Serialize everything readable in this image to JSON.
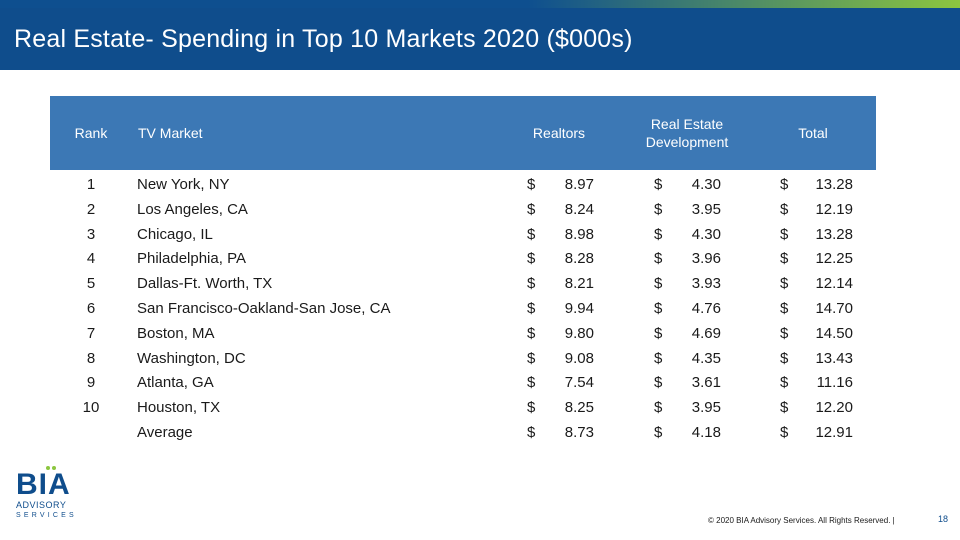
{
  "title": "Real Estate- Spending in Top 10 Markets 2020 ($000s)",
  "table": {
    "headers": {
      "rank": "Rank",
      "market": "TV Market",
      "realtors": "Realtors",
      "development": "Real Estate Development",
      "total": "Total"
    },
    "currency": "$",
    "rows": [
      {
        "rank": "1",
        "market": "New York, NY",
        "realtors": "8.97",
        "development": "4.30",
        "total": "13.28"
      },
      {
        "rank": "2",
        "market": "Los Angeles, CA",
        "realtors": "8.24",
        "development": "3.95",
        "total": "12.19"
      },
      {
        "rank": "3",
        "market": "Chicago, IL",
        "realtors": "8.98",
        "development": "4.30",
        "total": "13.28"
      },
      {
        "rank": "4",
        "market": "Philadelphia, PA",
        "realtors": "8.28",
        "development": "3.96",
        "total": "12.25"
      },
      {
        "rank": "5",
        "market": "Dallas-Ft. Worth, TX",
        "realtors": "8.21",
        "development": "3.93",
        "total": "12.14"
      },
      {
        "rank": "6",
        "market": "San Francisco-Oakland-San Jose, CA",
        "realtors": "9.94",
        "development": "4.76",
        "total": "14.70"
      },
      {
        "rank": "7",
        "market": "Boston, MA",
        "realtors": "9.80",
        "development": "4.69",
        "total": "14.50"
      },
      {
        "rank": "8",
        "market": "Washington, DC",
        "realtors": "9.08",
        "development": "4.35",
        "total": "13.43"
      },
      {
        "rank": "9",
        "market": "Atlanta, GA",
        "realtors": "7.54",
        "development": "3.61",
        "total": "11.16"
      },
      {
        "rank": "10",
        "market": "Houston, TX",
        "realtors": "8.25",
        "development": "3.95",
        "total": "12.20"
      },
      {
        "rank": "",
        "market": "Average",
        "realtors": "8.73",
        "development": "4.18",
        "total": "12.91"
      }
    ]
  },
  "logo": {
    "main": "BIA",
    "line1": "ADVISORY",
    "line2": "SERVICES"
  },
  "footer": {
    "copyright": "© 2020 BIA Advisory Services. All Rights Reserved. |",
    "page": "18"
  },
  "colors": {
    "title_bg": "#0f4d8c",
    "header_bg": "#3c78b5",
    "accent": "#8cc63f"
  }
}
